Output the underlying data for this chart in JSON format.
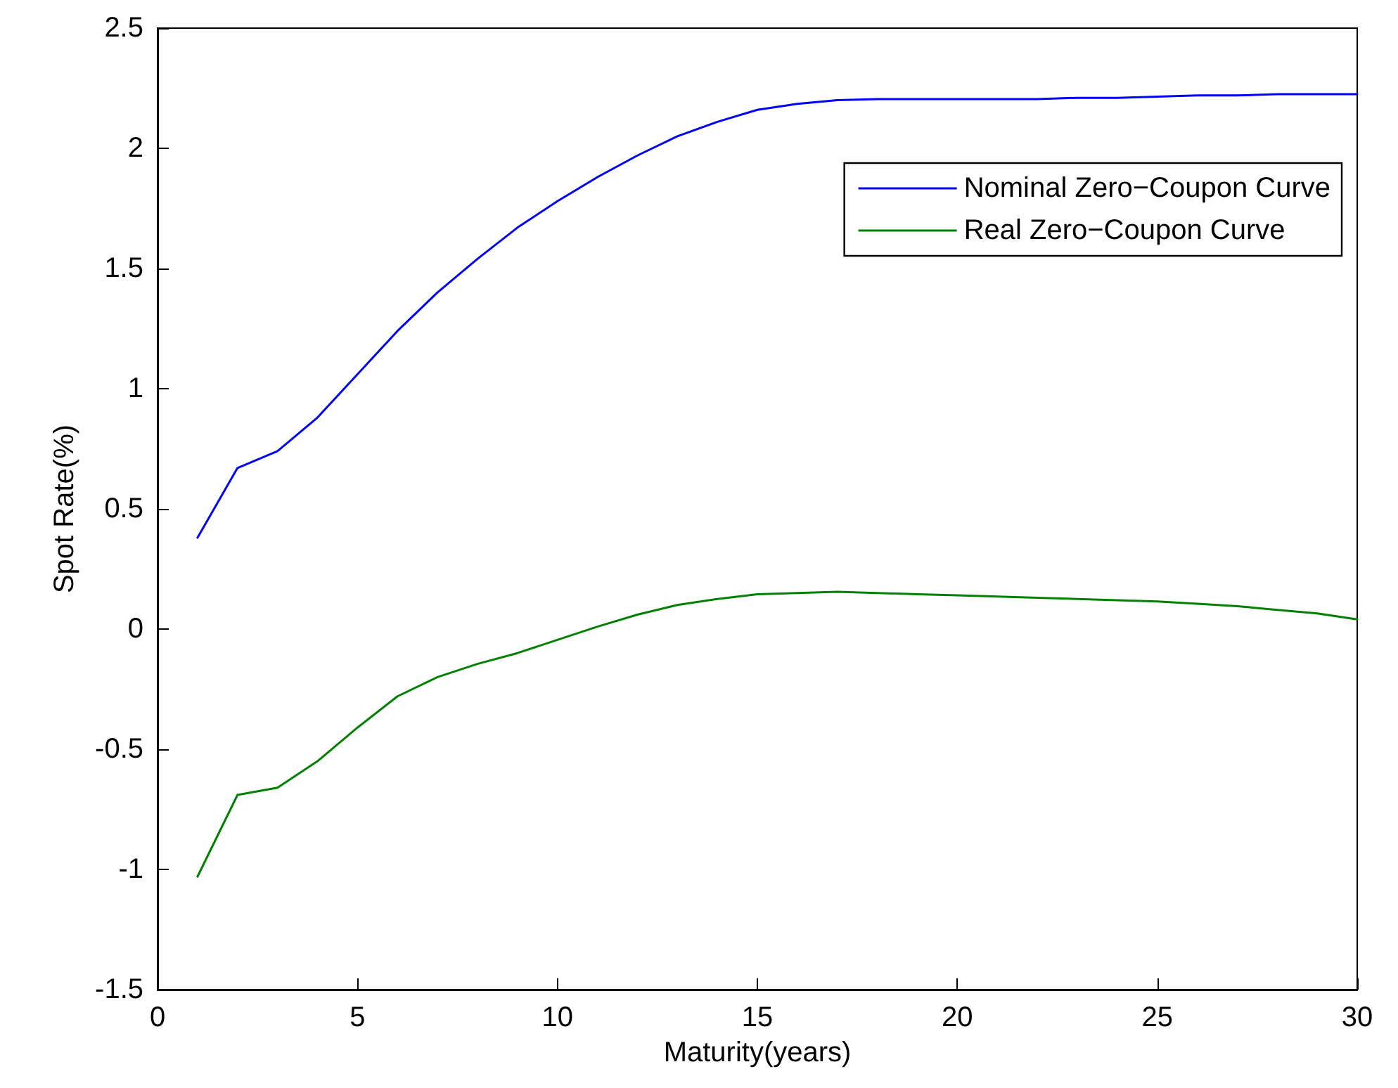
{
  "chart_data": {
    "type": "line",
    "xlabel": "Maturity(years)",
    "ylabel": "Spot Rate(%)",
    "x": [
      1,
      2,
      3,
      4,
      5,
      6,
      7,
      8,
      9,
      10,
      11,
      12,
      13,
      14,
      15,
      16,
      17,
      18,
      19,
      20,
      21,
      22,
      23,
      24,
      25,
      26,
      27,
      28,
      29,
      30
    ],
    "series": [
      {
        "name": "Nominal Zero−Coupon Curve",
        "color": "#0000ff",
        "values": [
          0.38,
          0.67,
          0.74,
          0.88,
          1.06,
          1.24,
          1.4,
          1.54,
          1.67,
          1.78,
          1.88,
          1.97,
          2.05,
          2.11,
          2.16,
          2.185,
          2.2,
          2.205,
          2.205,
          2.205,
          2.205,
          2.205,
          2.21,
          2.21,
          2.215,
          2.22,
          2.22,
          2.225,
          2.225,
          2.225
        ]
      },
      {
        "name": "Real Zero−Coupon Curve",
        "color": "#008000",
        "values": [
          -1.03,
          -0.69,
          -0.66,
          -0.55,
          -0.41,
          -0.28,
          -0.2,
          -0.145,
          -0.1,
          -0.045,
          0.01,
          0.06,
          0.1,
          0.125,
          0.145,
          0.15,
          0.155,
          0.15,
          0.145,
          0.14,
          0.135,
          0.13,
          0.125,
          0.12,
          0.115,
          0.105,
          0.095,
          0.08,
          0.065,
          0.04
        ]
      }
    ],
    "xlim": [
      0,
      30
    ],
    "xticks": [
      0,
      5,
      10,
      15,
      20,
      25,
      30
    ],
    "ylim": [
      -1.5,
      2.5
    ],
    "yticks": [
      -1.5,
      -1,
      -0.5,
      0,
      0.5,
      1,
      1.5,
      2,
      2.5
    ],
    "grid": false,
    "legend": "top right",
    "marker": "none",
    "line_style": "solid"
  }
}
